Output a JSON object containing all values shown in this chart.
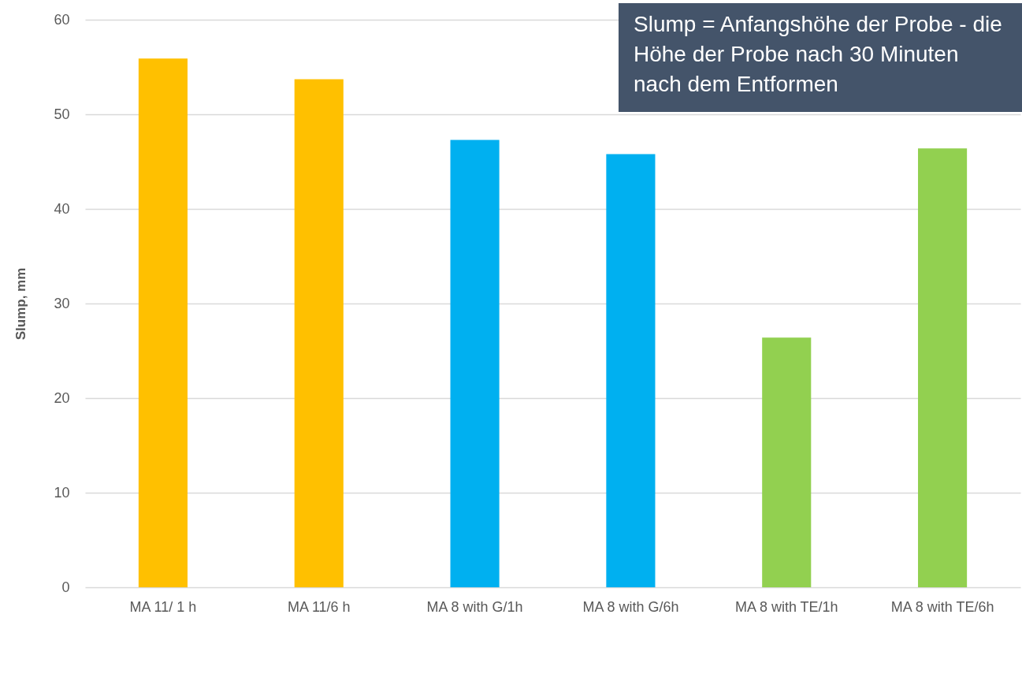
{
  "chart_data": {
    "type": "bar",
    "ylabel": "Slump, mm",
    "categories": [
      "MA 11/ 1 h",
      "MA 11/6 h",
      "MA 8 with G/1h",
      "MA 8 with G/6h",
      "MA 8 with TE/1h",
      "MA 8 with TE/6h"
    ],
    "values": [
      55.9,
      53.7,
      47.3,
      45.8,
      26.4,
      46.4
    ],
    "colors": [
      "#ffc000",
      "#ffc000",
      "#00b0f0",
      "#00b0f0",
      "#92d050",
      "#92d050"
    ],
    "ylim": [
      0,
      60
    ],
    "yticks": [
      0,
      10,
      20,
      30,
      40,
      50,
      60
    ],
    "grid": "y",
    "annotations": [
      "Slump = Anfangshöhe der Probe - die Höhe der Probe nach 30 Minuten nach dem Entformen"
    ]
  }
}
